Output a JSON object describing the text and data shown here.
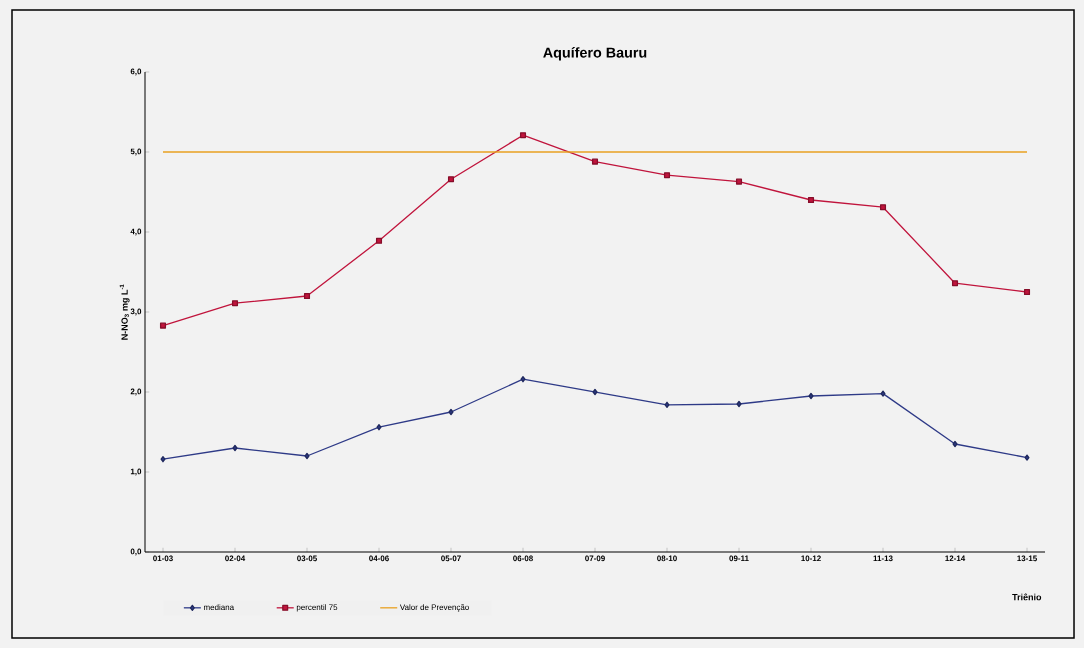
{
  "chart_data": {
    "type": "line",
    "title": "Aquífero Bauru",
    "xlabel": "Triênio",
    "ylabel": "N-NO$_{3}$ mg L$^{-1}$",
    "categories": [
      "01-03",
      "02-04",
      "03-05",
      "04-06",
      "05-07",
      "06-08",
      "07-09",
      "08-10",
      "09-11",
      "10-12",
      "11-13",
      "12-14",
      "13-15"
    ],
    "series": [
      {
        "name": "mediana",
        "color": "#2e3a87",
        "marker": "diamond",
        "values": [
          1.16,
          1.3,
          1.2,
          1.56,
          1.75,
          2.16,
          2.0,
          1.84,
          1.85,
          1.95,
          1.98,
          1.35,
          1.18
        ]
      },
      {
        "name": "percentil 75",
        "color": "#c0143c",
        "marker": "square",
        "values": [
          2.83,
          3.11,
          3.2,
          3.89,
          4.66,
          5.21,
          4.88,
          4.71,
          4.63,
          4.4,
          4.31,
          3.36,
          3.25
        ]
      },
      {
        "name": "Valor de Prevenção",
        "color": "#e8a020",
        "marker": "none",
        "values": [
          5.0,
          5.0,
          5.0,
          5.0,
          5.0,
          5.0,
          5.0,
          5.0,
          5.0,
          5.0,
          5.0,
          5.0,
          5.0
        ]
      }
    ],
    "ylim": [
      0,
      6
    ],
    "yticks": [
      {
        "value": 0,
        "label": "0,0"
      },
      {
        "value": 1,
        "label": "1,0"
      },
      {
        "value": 2,
        "label": "2,0"
      },
      {
        "value": 3,
        "label": "3,0"
      },
      {
        "value": 4,
        "label": "4,0"
      },
      {
        "value": 5,
        "label": "5,0"
      },
      {
        "value": 6,
        "label": "6,0"
      }
    ],
    "legend": "bottom",
    "grid": false
  }
}
